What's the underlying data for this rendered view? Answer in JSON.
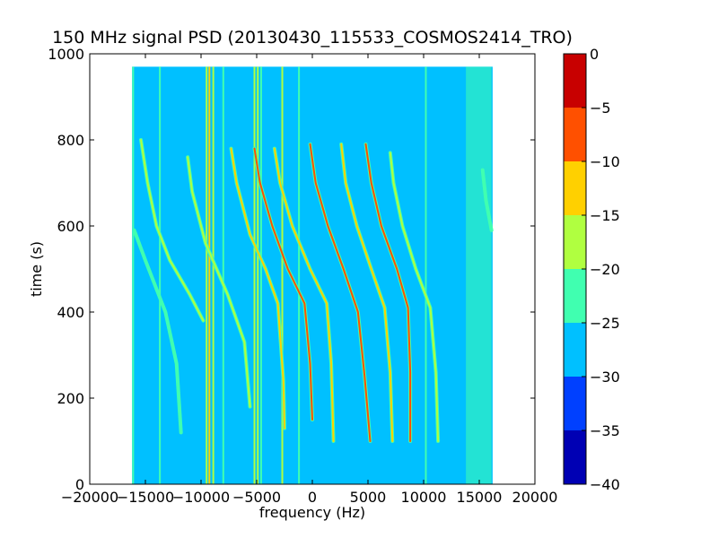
{
  "chart_data": {
    "type": "heatmap",
    "title": "150 MHz signal PSD (20130430_115533_COSMOS2414_TRO)",
    "xlabel": "frequency (Hz)",
    "ylabel": "time (s)",
    "xlim": [
      -20000,
      20000
    ],
    "ylim": [
      0,
      1000
    ],
    "x_ticks": [
      -20000,
      -15000,
      -10000,
      -5000,
      0,
      5000,
      10000,
      15000,
      20000
    ],
    "x_tick_labels": [
      "−20000",
      "−15000",
      "−10000",
      "−5000",
      "0",
      "5000",
      "10000",
      "15000",
      "20000"
    ],
    "y_ticks": [
      0,
      200,
      400,
      600,
      800,
      1000
    ],
    "y_tick_labels": [
      "0",
      "200",
      "400",
      "600",
      "800",
      "1000"
    ],
    "data_extent": {
      "x": [
        -16200,
        16200
      ],
      "y": [
        0,
        970
      ]
    },
    "background_level": -27.5,
    "colorbar": {
      "levels": [
        -40,
        -35,
        -30,
        -25,
        -20,
        -15,
        -10,
        -5,
        0
      ],
      "tick_labels": [
        "−40",
        "−35",
        "−30",
        "−25",
        "−20",
        "−15",
        "−10",
        "−5",
        "0"
      ],
      "colors": [
        "#0000b4",
        "#0040ff",
        "#00c0ff",
        "#40ffb0",
        "#b0ff40",
        "#ffd000",
        "#ff5000",
        "#c80000"
      ]
    },
    "vertical_lines": [
      {
        "x": -16100,
        "level": -22
      },
      {
        "x": -13700,
        "level": -22
      },
      {
        "x": -9500,
        "level": -17
      },
      {
        "x": -9250,
        "level": -12
      },
      {
        "x": -8900,
        "level": -17
      },
      {
        "x": -8000,
        "level": -22
      },
      {
        "x": -5200,
        "level": -17
      },
      {
        "x": -4900,
        "level": -17
      },
      {
        "x": -4600,
        "level": -22
      },
      {
        "x": -2700,
        "level": -17
      },
      {
        "x": -1200,
        "level": -22
      },
      {
        "x": 10200,
        "level": -22
      }
    ],
    "noise_band": {
      "x": [
        13800,
        16100
      ],
      "level": -22
    },
    "tracks": [
      {
        "points": [
          [
            -16000,
            590
          ],
          [
            -15000,
            520
          ],
          [
            -13200,
            400
          ],
          [
            -12200,
            280
          ],
          [
            -11800,
            120
          ]
        ],
        "level": -22
      },
      {
        "points": [
          [
            -15400,
            800
          ],
          [
            -14800,
            700
          ],
          [
            -14000,
            600
          ],
          [
            -12800,
            520
          ],
          [
            -11000,
            440
          ],
          [
            -9800,
            380
          ]
        ],
        "level": -17
      },
      {
        "points": [
          [
            -11200,
            760
          ],
          [
            -10800,
            680
          ],
          [
            -9600,
            560
          ],
          [
            -7600,
            440
          ],
          [
            -6100,
            330
          ],
          [
            -5600,
            180
          ]
        ],
        "level": -17
      },
      {
        "points": [
          [
            -7300,
            780
          ],
          [
            -6800,
            700
          ],
          [
            -5600,
            580
          ],
          [
            -4200,
            500
          ],
          [
            -3100,
            420
          ],
          [
            -2600,
            240
          ],
          [
            -2500,
            130
          ]
        ],
        "level": -12
      },
      {
        "points": [
          [
            -5200,
            780
          ],
          [
            -4700,
            700
          ],
          [
            -3600,
            600
          ],
          [
            -2200,
            500
          ],
          [
            -700,
            420
          ],
          [
            -200,
            280
          ],
          [
            0,
            150
          ]
        ],
        "level": -7
      },
      {
        "points": [
          [
            -3400,
            780
          ],
          [
            -2900,
            700
          ],
          [
            -1800,
            600
          ],
          [
            -200,
            500
          ],
          [
            1300,
            420
          ],
          [
            1700,
            280
          ],
          [
            1900,
            100
          ]
        ],
        "level": -12
      },
      {
        "points": [
          [
            -200,
            790
          ],
          [
            300,
            700
          ],
          [
            1400,
            600
          ],
          [
            2800,
            500
          ],
          [
            4100,
            400
          ],
          [
            4700,
            250
          ],
          [
            5200,
            100
          ]
        ],
        "level": -7
      },
      {
        "points": [
          [
            2600,
            790
          ],
          [
            3000,
            700
          ],
          [
            4000,
            600
          ],
          [
            5300,
            500
          ],
          [
            6500,
            410
          ],
          [
            7000,
            260
          ],
          [
            7200,
            100
          ]
        ],
        "level": -12
      },
      {
        "points": [
          [
            4800,
            790
          ],
          [
            5300,
            700
          ],
          [
            6200,
            600
          ],
          [
            7600,
            500
          ],
          [
            8600,
            410
          ],
          [
            8800,
            260
          ],
          [
            8800,
            100
          ]
        ],
        "level": -7
      },
      {
        "points": [
          [
            7000,
            770
          ],
          [
            7300,
            700
          ],
          [
            8100,
            600
          ],
          [
            9300,
            500
          ],
          [
            10600,
            410
          ],
          [
            11100,
            260
          ],
          [
            11300,
            100
          ]
        ],
        "level": -17
      },
      {
        "points": [
          [
            15300,
            730
          ],
          [
            15600,
            660
          ],
          [
            16100,
            590
          ]
        ],
        "level": -22
      }
    ]
  }
}
